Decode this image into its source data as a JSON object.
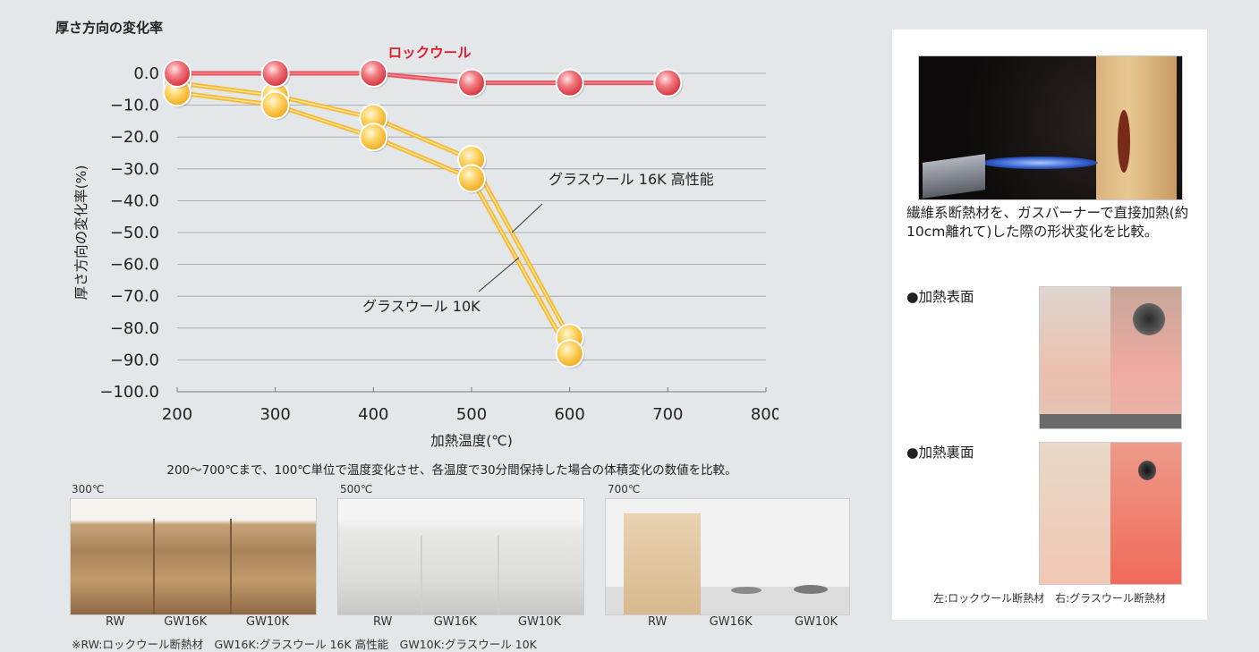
{
  "chart_data": {
    "type": "line",
    "title": "厚さ方向の変化率",
    "xlabel": "加熱温度(℃)",
    "ylabel": "厚さ方向の変化率(%)",
    "xlim": [
      200,
      800
    ],
    "ylim": [
      -100,
      0
    ],
    "x_ticks": [
      200,
      300,
      400,
      500,
      600,
      700,
      800
    ],
    "y_tick_labels": [
      "0.0",
      "−10.0",
      "−20.0",
      "−30.0",
      "−40.0",
      "−50.0",
      "−60.0",
      "−70.0",
      "−80.0",
      "−90.0",
      "−100.0"
    ],
    "y_tick_values": [
      0,
      -10,
      -20,
      -30,
      -40,
      -50,
      -60,
      -70,
      -80,
      -90,
      -100
    ],
    "grid": true,
    "series": [
      {
        "name": "ロックウール",
        "color": "#e8505b",
        "x": [
          200,
          300,
          400,
          500,
          600,
          700
        ],
        "y": [
          0,
          0,
          0,
          -3,
          -3,
          -3
        ]
      },
      {
        "name": "グラスウール 16K 高性能",
        "color": "#f6b92f",
        "x": [
          200,
          300,
          400,
          500,
          600
        ],
        "y": [
          -3,
          -7,
          -14,
          -27,
          -83
        ]
      },
      {
        "name": "グラスウール 10K",
        "color": "#f6b92f",
        "x": [
          200,
          300,
          400,
          500,
          600
        ],
        "y": [
          -6,
          -10,
          -20,
          -33,
          -88
        ]
      }
    ]
  },
  "caption": "200〜700℃まで、100℃単位で温度変化させ、各温度で30分間保持した場合の体積変化の数値を比較。",
  "photos": [
    {
      "label": "300℃",
      "cols": [
        "RW",
        "GW16K",
        "GW10K"
      ]
    },
    {
      "label": "500℃",
      "cols": [
        "RW",
        "GW16K",
        "GW10K"
      ]
    },
    {
      "label": "700℃",
      "cols": [
        "RW",
        "GW16K",
        "GW10K"
      ]
    }
  ],
  "footnote": "※RW:ロックウール断熱材　GW16K:グラスウール 16K 高性能　GW10K:グラスウール 10K",
  "side_panel": {
    "burner_caption": "繊維系断熱材を、ガスバーナーで直接加熱(約10cm離れて)した際の形状変化を比較。",
    "heat_front": "●加熱表面",
    "heat_back": "●加熱裏面",
    "bottom_caption": "左:ロックウール断熱材　右:グラスウール断熱材"
  }
}
